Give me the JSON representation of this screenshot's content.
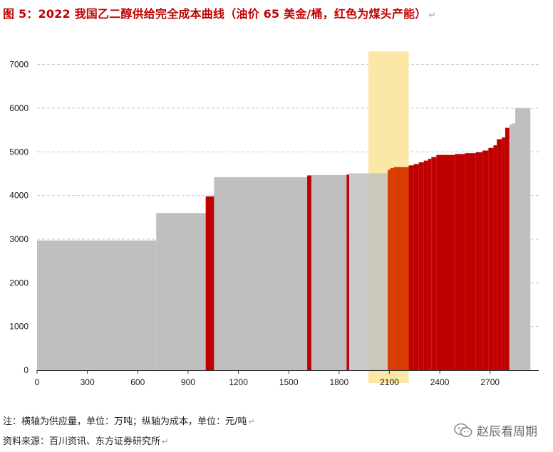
{
  "figure": {
    "title": "图 5：2022 我国乙二醇供给完全成本曲线（油价 65 美金/桶，红色为煤头产能）",
    "return_mark": "↵"
  },
  "chart_data": {
    "type": "bar",
    "subtype": "supply-cost-curve",
    "title": "图 5：2022 我国乙二醇供给完全成本曲线（油价 65 美金/桶，红色为煤头产能）",
    "xlabel": "横轴为供应量，单位：万吨",
    "ylabel": "纵轴为成本，单位：元/吨",
    "xlim": [
      0,
      2990
    ],
    "ylim": [
      0,
      7500
    ],
    "x_ticks": [
      0,
      300,
      600,
      900,
      1200,
      1500,
      1800,
      2100,
      2400,
      2700
    ],
    "y_ticks": [
      0,
      1000,
      2000,
      3000,
      4000,
      5000,
      6000,
      7000
    ],
    "grid": "horizontal dashed",
    "colors": {
      "other": "#c0bfbf",
      "coal": "#c00000",
      "highlight_coal": "#d83c00",
      "highlight_band": "#fbe7a6"
    },
    "highlight_band_x": [
      1975,
      2215
    ],
    "highlight_band_y_max": 7300,
    "segments": [
      {
        "x0": 0,
        "x1": 710,
        "cost": 2970,
        "type": "other"
      },
      {
        "x0": 710,
        "x1": 1005,
        "cost": 3600,
        "type": "other"
      },
      {
        "x0": 1005,
        "x1": 1055,
        "cost": 3980,
        "type": "coal"
      },
      {
        "x0": 1055,
        "x1": 1610,
        "cost": 4420,
        "type": "other"
      },
      {
        "x0": 1610,
        "x1": 1635,
        "cost": 4460,
        "type": "coal"
      },
      {
        "x0": 1635,
        "x1": 1845,
        "cost": 4470,
        "type": "other"
      },
      {
        "x0": 1845,
        "x1": 1860,
        "cost": 4480,
        "type": "coal"
      },
      {
        "x0": 1860,
        "x1": 2090,
        "cost": 4510,
        "type": "other"
      },
      {
        "x0": 2090,
        "x1": 2105,
        "cost": 4590,
        "type": "highlight_coal"
      },
      {
        "x0": 2105,
        "x1": 2125,
        "cost": 4630,
        "type": "highlight_coal"
      },
      {
        "x0": 2125,
        "x1": 2215,
        "cost": 4650,
        "type": "highlight_coal"
      },
      {
        "x0": 2215,
        "x1": 2245,
        "cost": 4690,
        "type": "coal"
      },
      {
        "x0": 2245,
        "x1": 2275,
        "cost": 4720,
        "type": "coal"
      },
      {
        "x0": 2275,
        "x1": 2305,
        "cost": 4760,
        "type": "coal"
      },
      {
        "x0": 2305,
        "x1": 2330,
        "cost": 4800,
        "type": "coal"
      },
      {
        "x0": 2330,
        "x1": 2350,
        "cost": 4840,
        "type": "coal"
      },
      {
        "x0": 2350,
        "x1": 2380,
        "cost": 4880,
        "type": "coal"
      },
      {
        "x0": 2380,
        "x1": 2490,
        "cost": 4930,
        "type": "coal"
      },
      {
        "x0": 2490,
        "x1": 2550,
        "cost": 4950,
        "type": "coal"
      },
      {
        "x0": 2550,
        "x1": 2615,
        "cost": 4970,
        "type": "coal"
      },
      {
        "x0": 2615,
        "x1": 2655,
        "cost": 4990,
        "type": "coal"
      },
      {
        "x0": 2655,
        "x1": 2690,
        "cost": 5030,
        "type": "coal"
      },
      {
        "x0": 2690,
        "x1": 2720,
        "cost": 5090,
        "type": "coal"
      },
      {
        "x0": 2720,
        "x1": 2740,
        "cost": 5150,
        "type": "coal"
      },
      {
        "x0": 2740,
        "x1": 2770,
        "cost": 5290,
        "type": "coal"
      },
      {
        "x0": 2770,
        "x1": 2790,
        "cost": 5330,
        "type": "coal"
      },
      {
        "x0": 2790,
        "x1": 2815,
        "cost": 5550,
        "type": "coal"
      },
      {
        "x0": 2815,
        "x1": 2830,
        "cost": 5630,
        "type": "other"
      },
      {
        "x0": 2830,
        "x1": 2850,
        "cost": 5650,
        "type": "other"
      },
      {
        "x0": 2850,
        "x1": 2940,
        "cost": 6000,
        "type": "other"
      }
    ]
  },
  "footer": {
    "note": "注：横轴为供应量，单位：万吨；纵轴为成本，单位：元/吨",
    "source": "资料来源：百川资讯、东方证券研究所",
    "return_mark": "↵",
    "watermark_text": "赵辰看周期",
    "watermark_icon": "wechat-icon"
  }
}
